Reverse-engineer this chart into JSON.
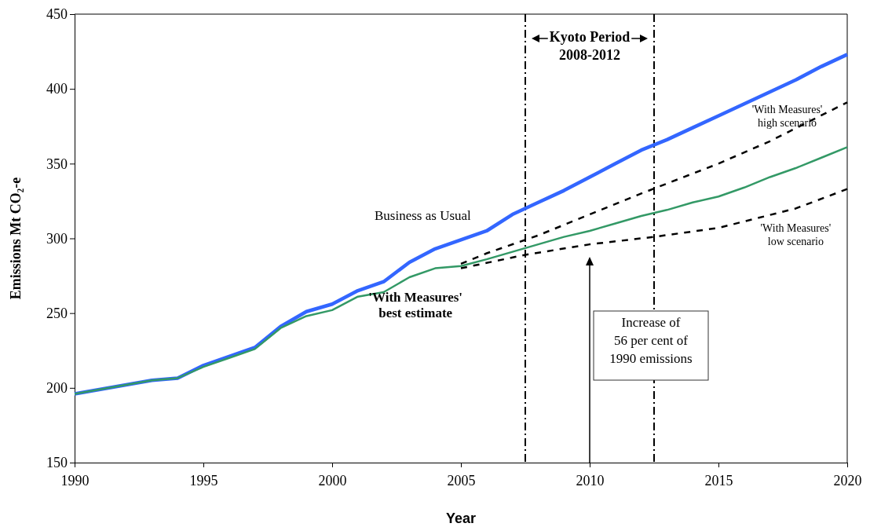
{
  "chart_data": {
    "type": "line",
    "xlabel": "Year",
    "ylabel": "Emissions Mt CO₂-e",
    "xlim": [
      1990,
      2020
    ],
    "xticks": [
      1990,
      1995,
      2000,
      2005,
      2010,
      2015,
      2020
    ],
    "ylim": [
      150,
      450
    ],
    "yticks": [
      150,
      200,
      250,
      300,
      350,
      400,
      450
    ],
    "grid": false,
    "marker": "none",
    "series": [
      {
        "name": "Business as Usual",
        "color": "#3366ff",
        "line_style": "solid",
        "x": [
          1990,
          1991,
          1992,
          1993,
          1994,
          1995,
          1996,
          1997,
          1998,
          1999,
          2000,
          2001,
          2002,
          2003,
          2004,
          2005,
          2006,
          2007,
          2008,
          2009,
          2010,
          2011,
          2012,
          2013,
          2014,
          2015,
          2016,
          2017,
          2018,
          2019,
          2020
        ],
        "values": [
          196,
          199,
          202,
          205,
          206.5,
          215,
          221,
          227,
          241,
          251,
          256,
          265,
          271,
          284,
          293,
          299,
          305,
          316,
          324,
          332,
          341,
          350,
          359,
          366,
          374,
          382,
          390,
          398,
          406,
          415,
          423
        ]
      },
      {
        "name": "'With Measures' high scenario",
        "color": "#000000",
        "line_style": "dashed",
        "x": [
          2005,
          2006,
          2008,
          2010,
          2012,
          2015,
          2017,
          2020
        ],
        "values": [
          283,
          290,
          302,
          316,
          330,
          350,
          365,
          391
        ]
      },
      {
        "name": "'With Measures' best estimate",
        "color": "#339966",
        "line_style": "solid",
        "x": [
          1990,
          1991,
          1992,
          1993,
          1994,
          1995,
          1996,
          1997,
          1998,
          1999,
          2000,
          2001,
          2002,
          2003,
          2004,
          2005,
          2006,
          2007,
          2008,
          2009,
          2010,
          2011,
          2012,
          2013,
          2014,
          2015,
          2016,
          2017,
          2018,
          2019,
          2020
        ],
        "values": [
          196,
          199,
          202,
          205,
          206.5,
          214,
          220,
          226,
          240,
          248,
          252,
          261,
          264,
          274,
          280,
          281.5,
          286,
          291,
          296,
          301,
          305,
          310,
          315,
          319,
          324,
          328,
          334,
          341,
          347,
          354,
          361
        ]
      },
      {
        "name": "'With Measures' low scenario",
        "color": "#000000",
        "line_style": "dashed",
        "x": [
          2005,
          2007.5,
          2010,
          2012.5,
          2015,
          2018,
          2020
        ],
        "values": [
          280,
          289,
          296,
          301,
          307,
          320,
          333
        ]
      }
    ],
    "ref_lines": [
      {
        "axis": "x",
        "value": 2007.5,
        "label": null,
        "line_style": "dashdot"
      },
      {
        "axis": "x",
        "value": 2012.5,
        "label": null,
        "line_style": "dashdot"
      }
    ],
    "annotations": [
      "Kyoto Period\n2008-2012",
      "Increase of\n56 per cent of\n1990 emissions"
    ]
  }
}
